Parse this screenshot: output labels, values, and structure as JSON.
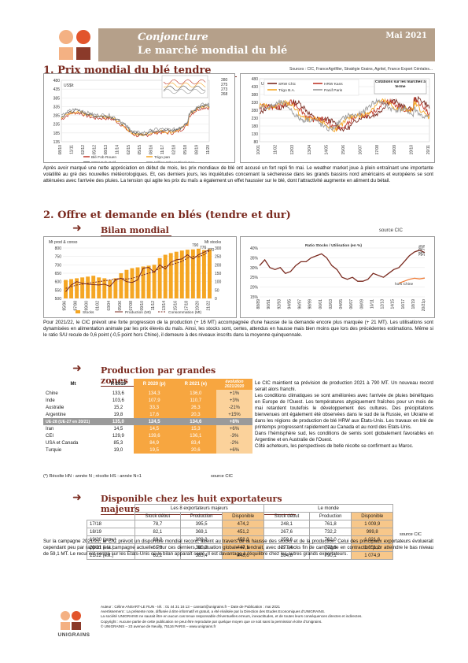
{
  "header": {
    "title1": "Conjoncture",
    "title2": "Le marché mondial du blé",
    "date": "Mai 2021"
  },
  "section1": {
    "title": "1. Prix mondial du blé tendre",
    "sources": "Sources : CIC, FranceAgriMer, Stratégie Grains, Agritel, France Export Céréales...",
    "paragraph": "Après avoir marqué une nette appréciation en début de mois, les prix mondiaux de blé ont accusé un fort repli fin mai. Le weather market joue à plein entraînant une importante volatilité au gré des nouvelles météorologiques. Et, ces derniers jours, les inquiétudes concernant la sécheresse dans les grands bassins nord américains et européens se sont atténuées avec l'arrivée des pluies. La tension qui agite les prix du maïs a également un effet haussier sur le blé, dont l'attractivité augmente en aliment du bétail."
  },
  "chart1": {
    "unit": "US$/t",
    "yticks": [
      "480",
      "435",
      "385",
      "335",
      "285",
      "235",
      "185",
      "135"
    ],
    "xticks": [
      "08/10",
      "11/11",
      "02/12",
      "05/12",
      "08/13",
      "11/14",
      "02/15",
      "05/15",
      "08/16",
      "11/17",
      "02/18",
      "05/18",
      "08/19",
      "11/20"
    ],
    "legend": [
      "Blé Fob Rouen",
      "Trigo pan",
      "SRW Fob Golf",
      "Milling Wheat Black Sea"
    ],
    "colors": [
      "#c0392b",
      "#f5a623",
      "#555555",
      "#999999"
    ],
    "inset_values": [
      "280",
      "275",
      "273",
      "268"
    ]
  },
  "chart2": {
    "unit": "US$/t",
    "yticks": [
      "480",
      "430",
      "380",
      "330",
      "280",
      "230",
      "180",
      "130",
      "80"
    ],
    "xticks": [
      "10/01",
      "11/02",
      "12/03",
      "13/04",
      "14/05",
      "15/06",
      "16/07",
      "17/08",
      "18/09",
      "19/10",
      "20/11"
    ],
    "legend": [
      "SRW Chic",
      "HRW Kans",
      "Trigo B.A.",
      "Panif Paris"
    ],
    "colors": [
      "#7a2a1f",
      "#c0392b",
      "#f5a623",
      "#999999"
    ],
    "note": "Cotations sur les marchés à terme"
  },
  "section2": {
    "title": "2. Offre et demande en blés (tendre et dur)",
    "sub1": "Bilan mondial",
    "source": "source CIC",
    "paragraph": "Pour 2021/22, le CIC prévoit une forte progression de la production (+ 16 MT) accompagnée d'une hausse de la demande encore plus marquée (+ 21 MT). Les utilisations sont dynamisées en alimentation animale par les prix élevés du maïs. Ainsi, les stocks sont, certes, attendus en hausse mais bien moins que lors des précédentes estimations. Même si le ratio S/U recule de 0,6 point (-0,5 point hors Chine), il demeure à des niveaux inscrits dans la moyenne quinquennale."
  },
  "chart3": {
    "left_label": "Mt prod & conso",
    "right_label": "Mt stocks",
    "yleft": [
      "800",
      "750",
      "700",
      "650",
      "600",
      "550",
      "500"
    ],
    "yright": [
      "300",
      "250",
      "200",
      "150",
      "100",
      "50",
      "0"
    ],
    "legend": [
      "Stocks",
      "Production (Mt)",
      "Consommation (Mt)"
    ],
    "colors": [
      "#f5a623",
      "#7a2a1f",
      "#7a2a1f"
    ],
    "tags": [
      "790",
      "776",
      "770"
    ],
    "xticks": [
      "95/96",
      "97/98",
      "99/00",
      "01/02",
      "03/04",
      "05/06",
      "07/08",
      "09/10",
      "11/12",
      "13/14",
      "15/16",
      "17/18",
      "19/20",
      "21/22"
    ],
    "stocks": [
      110,
      115,
      120,
      125,
      130,
      135,
      125,
      120,
      110,
      120,
      150,
      170,
      180,
      185,
      190,
      195,
      200,
      240,
      260,
      270,
      278,
      285,
      290,
      292,
      296,
      288,
      293
    ],
    "production": [
      540,
      580,
      600,
      590,
      585,
      582,
      580,
      585,
      572,
      610,
      620,
      600,
      595,
      610,
      680,
      685,
      655,
      700,
      675,
      715,
      730,
      735,
      760,
      735,
      760,
      775,
      790
    ],
    "consumption": [
      560,
      570,
      580,
      585,
      590,
      595,
      600,
      605,
      610,
      615,
      620,
      615,
      620,
      630,
      640,
      650,
      660,
      680,
      690,
      700,
      710,
      720,
      740,
      750,
      748,
      760,
      785
    ]
  },
  "chart4": {
    "title": "Ratio Stocks / Utilisation (en %)",
    "yticks": [
      "40%",
      "35%",
      "30%",
      "25%",
      "20%",
      "15%"
    ],
    "xticks": [
      "88/89",
      "90/91",
      "92/93",
      "94/95",
      "96/97",
      "98/99",
      "00/01",
      "02/03",
      "04/05",
      "06/07",
      "08/09",
      "10/11",
      "12/13",
      "14/15",
      "16/17",
      "18/19",
      "20/21p"
    ],
    "hors": "hors Chine",
    "colors": [
      "#7a2a1f",
      "#f07f3c"
    ],
    "tags": [
      "38.9%",
      "37.7%"
    ],
    "world": [
      31,
      34,
      30,
      29,
      30,
      27,
      28,
      31,
      33,
      33,
      35,
      36,
      37,
      35,
      31,
      29,
      25,
      24,
      25,
      23,
      23,
      24,
      27,
      26,
      25,
      27,
      29,
      30,
      33,
      36,
      38,
      38.9,
      37.7
    ],
    "horschine": [
      22,
      23,
      24,
      24.5,
      24.2,
      24.6
    ]
  },
  "section3": {
    "title": "Production par grandes zones",
    "headers": [
      "Mt",
      "R 2019",
      "R 2020 (p)",
      "R 2021 (e)",
      "évolution 2021/2020"
    ],
    "rows": [
      [
        "Chine",
        "133,6",
        "134,3",
        "136,0",
        "+1%"
      ],
      [
        "Inde",
        "103,6",
        "107,9",
        "110,7",
        "+3%"
      ],
      [
        "Australie",
        "15,2",
        "33,3",
        "26,3",
        "-21%"
      ],
      [
        "Argentine",
        "19,8",
        "17,6",
        "20,3",
        "+15%"
      ],
      [
        "UE-28 (UE-27 en 20/21)",
        "135,0",
        "124,5",
        "134,6",
        "+8%"
      ],
      [
        "Iran",
        "14,5",
        "14,5",
        "15,3",
        "+6%"
      ],
      [
        "CEI",
        "129,9",
        "139,6",
        "136,1",
        "-3%"
      ],
      [
        "USA et Canada",
        "85,3",
        "84,9",
        "83,4",
        "-2%"
      ],
      [
        "Turquie",
        "19,0",
        "19,5",
        "20,6",
        "+6%"
      ]
    ],
    "footnote": "(*) Récolte HN : année N ; récolte HS : année N+1",
    "source": "source CIC",
    "paragraph1": "Le CIC maintient sa prévision de production 2021 à 790 MT. Un nouveau record serait alors franchi.",
    "paragraph2": "Les conditions climatiques se sont améliorées avec l'arrivée de pluies bénéfiques en Europe de l'Ouest. Les températures atypiquement fraîches pour un mois de mai retardent toutefois le développement des cultures. Des précipitations bienvenues ont également été observées dans le sud de la Russie, en Ukraine et dans les régions de production de blé HRW aux Etats-Unis. Les travaux en blé de printemps progressent rapidement au Canada et au nord des Etats-Unis.",
    "paragraph3": "Dans l'hémisphère sud, les conditions de semis sont globalement favorables en Argentine et en Australie de l'Ouest.",
    "paragraph4": "Côté acheteurs, les perspectives de belle récolte se confirment au Maroc."
  },
  "section4": {
    "title": "Disponible chez les huit exportateurs majeurs",
    "group1": "Les 8 exportateurs majeurs",
    "group2": "Le monde",
    "headers": [
      "Stock début",
      "Production",
      "Disponible",
      "Stock début",
      "Production",
      "Disponible"
    ],
    "rows": [
      [
        "17/18",
        "78,7",
        "395,5",
        "474,2",
        "248,1",
        "761,8",
        "1 009,9"
      ],
      [
        "18/19",
        "82,1",
        "369,1",
        "451,2",
        "267,6",
        "732,2",
        "999,8"
      ],
      [
        "19/20 (prov.)",
        "69,0",
        "389,3",
        "458,3",
        "259,6",
        "762,0",
        "1 021,6"
      ],
      [
        "20/21 (est.)",
        "61,8",
        "385,3",
        "447,1",
        "277,4",
        "773,8",
        "1 051,2"
      ],
      [
        "21/22 (est.)",
        "63,2",
        "385,4",
        "448,6",
        "284,8",
        "790,1",
        "1 074,9"
      ]
    ],
    "source": "source CIC",
    "paragraph": "Sur la campagne 2021/22, le CIC prévoit un disponible mondial record, atteint au travers de la hausse des stocks et de la production. Celui des principaux exportateurs évoluerait cependant peu par rapport à la campagne actuelle. Pour ces derniers, la situation globale se tendrait, avec des stocks fin de campagne en contraction pour atteindre le bas niveau de 59,1 MT. Le recul est centré sur les Etats-Unis où le bilan apparaît serré. Il est davantage à l'équilibre chez les autres grands exportateurs."
  },
  "footer": {
    "logo": "UNIGRAINS",
    "line1": "Auteur : Céline ANSART-LE RUN - tél. : 01 44 31 16 13 – cansart@unigrains.fr – Date de Publication : mai 2021",
    "line2": "Avertissement : La présente note, diffusée à titre informatif et gratuit, a été réalisée par la Direction des Etudes Economiques d'UNIGRAINS.",
    "line3": "La société UNIGRAINS ne saurait être en aucun cas tenue responsable d'éventuelles erreurs, inexactitudes, et de toutes leurs conséquences directes et indirectes.",
    "line4": "Copyright : Aucune partie de cette publication ne peut être reproduite par quelque moyen que ce soit sans la permission écrite d'Unigrains.",
    "line5": "© UNIGRAINS – 23 avenue de Neuilly, 75116 PARIS – www.unigrains.fr"
  }
}
